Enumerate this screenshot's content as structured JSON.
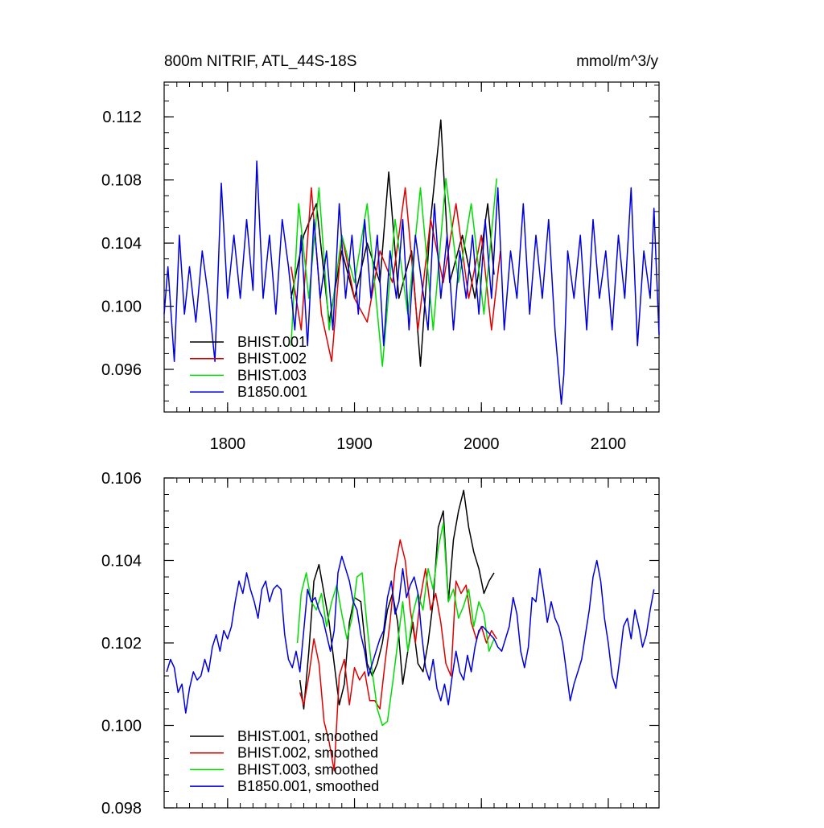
{
  "colors": {
    "black": "#000000",
    "red": "#e00000",
    "green": "#00dd00",
    "blue": "#0000dd"
  },
  "chart_data": [
    {
      "type": "line",
      "title": "800m NITRIF, ATL_44S-18S",
      "units": "mmol/m^3/y",
      "xlim": [
        1750,
        2140
      ],
      "ylim": [
        0.0933,
        0.1142
      ],
      "xticks": [
        1800,
        1900,
        2000,
        2100
      ],
      "xtick_labels": [
        "1800",
        "1900",
        "2000",
        "2100"
      ],
      "yticks": [
        0.096,
        0.1,
        0.104,
        0.108,
        0.112
      ],
      "ytick_labels": [
        "0.096",
        "0.100",
        "0.104",
        "0.108",
        "0.112"
      ],
      "legend_position": "bottom-left",
      "series": [
        {
          "name": "BHIST.001",
          "color": "black",
          "x": [
            1850,
            1860,
            1870,
            1880,
            1890,
            1900,
            1910,
            1920,
            1927,
            1935,
            1945,
            1952,
            1960,
            1968,
            1975,
            1985,
            1995,
            2005,
            2010
          ],
          "y": [
            0.1005,
            0.1045,
            0.1065,
            0.099,
            0.1035,
            0.1005,
            0.104,
            0.1015,
            0.1085,
            0.1005,
            0.1035,
            0.0962,
            0.1055,
            0.1118,
            0.1015,
            0.1045,
            0.1005,
            0.1065,
            0.102
          ]
        },
        {
          "name": "BHIST.002",
          "color": "red",
          "x": [
            1850,
            1858,
            1866,
            1874,
            1882,
            1890,
            1900,
            1910,
            1920,
            1930,
            1940,
            1950,
            1960,
            1970,
            1980,
            1990,
            2000,
            2008,
            2015
          ],
          "y": [
            0.1025,
            0.0985,
            0.1075,
            0.0995,
            0.0965,
            0.1045,
            0.1005,
            0.099,
            0.1035,
            0.1015,
            0.1075,
            0.0985,
            0.1055,
            0.1015,
            0.1065,
            0.1005,
            0.1045,
            0.0985,
            0.1035
          ]
        },
        {
          "name": "BHIST.003",
          "color": "green",
          "x": [
            1850,
            1856,
            1864,
            1872,
            1880,
            1890,
            1900,
            1910,
            1922,
            1932,
            1942,
            1952,
            1962,
            1972,
            1982,
            1992,
            2002,
            2012
          ],
          "y": [
            0.0975,
            0.1065,
            0.1005,
            0.1075,
            0.0985,
            0.1045,
            0.1015,
            0.1065,
            0.0962,
            0.1055,
            0.0995,
            0.1075,
            0.0985,
            0.1081,
            0.1015,
            0.1065,
            0.0995,
            0.1081
          ]
        },
        {
          "name": "B1850.001",
          "color": "blue",
          "x": [
            1750,
            1753,
            1758,
            1762,
            1766,
            1770,
            1775,
            1780,
            1785,
            1790,
            1795,
            1800,
            1805,
            1810,
            1815,
            1820,
            1823,
            1828,
            1833,
            1838,
            1843,
            1848,
            1853,
            1858,
            1863,
            1868,
            1873,
            1878,
            1883,
            1888,
            1893,
            1898,
            1903,
            1908,
            1913,
            1918,
            1923,
            1928,
            1933,
            1938,
            1943,
            1948,
            1953,
            1958,
            1963,
            1968,
            1973,
            1978,
            1983,
            1988,
            1993,
            1998,
            2003,
            2008,
            2013,
            2018,
            2023,
            2028,
            2033,
            2038,
            2043,
            2048,
            2053,
            2058,
            2063,
            2065,
            2068,
            2073,
            2078,
            2083,
            2088,
            2093,
            2098,
            2103,
            2108,
            2113,
            2118,
            2123,
            2128,
            2133,
            2136,
            2140
          ],
          "y": [
            0.0995,
            0.1025,
            0.0965,
            0.1045,
            0.0995,
            0.1025,
            0.099,
            0.1035,
            0.1005,
            0.0965,
            0.1078,
            0.1005,
            0.1045,
            0.1005,
            0.1055,
            0.101,
            0.1092,
            0.1005,
            0.1045,
            0.0995,
            0.1055,
            0.1025,
            0.0985,
            0.1045,
            0.0975,
            0.1055,
            0.1005,
            0.1035,
            0.0985,
            0.1065,
            0.1005,
            0.1045,
            0.0995,
            0.1055,
            0.1005,
            0.1045,
            0.0975,
            0.1035,
            0.1005,
            0.1055,
            0.0985,
            0.1045,
            0.1015,
            0.0985,
            0.1065,
            0.1005,
            0.1045,
            0.0985,
            0.1035,
            0.1005,
            0.1045,
            0.0995,
            0.1055,
            0.1005,
            0.1075,
            0.0985,
            0.1035,
            0.1005,
            0.1065,
            0.0995,
            0.1045,
            0.1005,
            0.1055,
            0.0985,
            0.0938,
            0.0957,
            0.1035,
            0.1005,
            0.1045,
            0.0985,
            0.1055,
            0.1005,
            0.1035,
            0.0985,
            0.1045,
            0.1005,
            0.1075,
            0.0975,
            0.1035,
            0.1005,
            0.1062,
            0.0982
          ]
        }
      ]
    },
    {
      "type": "line",
      "xlim": [
        1750,
        2140
      ],
      "ylim": [
        0.098,
        0.106
      ],
      "xticks": [
        1800,
        1900,
        2000,
        2100
      ],
      "yticks": [
        0.098,
        0.1,
        0.102,
        0.104,
        0.106
      ],
      "ytick_labels": [
        "0.098",
        "0.100",
        "0.102",
        "0.104",
        "0.106"
      ],
      "legend_position": "bottom-left",
      "series": [
        {
          "name": "BHIST.001, smoothed",
          "color": "black",
          "x": [
            1857,
            1860,
            1864,
            1868,
            1872,
            1876,
            1880,
            1884,
            1888,
            1892,
            1896,
            1900,
            1905,
            1910,
            1914,
            1918,
            1922,
            1926,
            1930,
            1934,
            1938,
            1942,
            1946,
            1950,
            1954,
            1958,
            1962,
            1966,
            1970,
            1974,
            1978,
            1982,
            1986,
            1990,
            1994,
            1998,
            2002,
            2006,
            2010
          ],
          "y": [
            0.1011,
            0.1004,
            0.1018,
            0.1035,
            0.1039,
            0.1032,
            0.1025,
            0.1015,
            0.1005,
            0.101,
            0.1025,
            0.1031,
            0.103,
            0.1015,
            0.1012,
            0.1015,
            0.102,
            0.1028,
            0.1032,
            0.1025,
            0.101,
            0.1018,
            0.1025,
            0.1015,
            0.1013,
            0.102,
            0.103,
            0.1048,
            0.1052,
            0.103,
            0.1045,
            0.1052,
            0.1057,
            0.1048,
            0.1042,
            0.1038,
            0.1032,
            0.1035,
            0.1037
          ]
        },
        {
          "name": "BHIST.002, smoothed",
          "color": "red",
          "x": [
            1857,
            1860,
            1864,
            1868,
            1872,
            1876,
            1880,
            1884,
            1888,
            1892,
            1896,
            1900,
            1904,
            1908,
            1912,
            1916,
            1920,
            1924,
            1928,
            1932,
            1936,
            1940,
            1944,
            1948,
            1952,
            1956,
            1960,
            1964,
            1968,
            1972,
            1976,
            1980,
            1984,
            1988,
            1992,
            1996,
            2000,
            2004,
            2008,
            2012
          ],
          "y": [
            0.1008,
            0.1005,
            0.1012,
            0.1021,
            0.1015,
            0.1001,
            0.0996,
            0.0989,
            0.1012,
            0.1016,
            0.1005,
            0.1014,
            0.1011,
            0.1013,
            0.1006,
            0.1006,
            0.1004,
            0.1015,
            0.1025,
            0.1038,
            0.1045,
            0.104,
            0.1028,
            0.102,
            0.1031,
            0.1038,
            0.1028,
            0.1032,
            0.1025,
            0.1015,
            0.1012,
            0.1035,
            0.1032,
            0.1034,
            0.1025,
            0.1021,
            0.1024,
            0.102,
            0.1023,
            0.1021
          ]
        },
        {
          "name": "BHIST.003, smoothed",
          "color": "green",
          "x": [
            1855,
            1858,
            1862,
            1866,
            1870,
            1874,
            1878,
            1882,
            1886,
            1890,
            1894,
            1898,
            1902,
            1906,
            1910,
            1914,
            1918,
            1922,
            1926,
            1930,
            1934,
            1938,
            1942,
            1946,
            1950,
            1954,
            1958,
            1962,
            1966,
            1970,
            1974,
            1978,
            1982,
            1986,
            1990,
            1994,
            1998,
            2002,
            2006,
            2010
          ],
          "y": [
            0.102,
            0.1032,
            0.1037,
            0.103,
            0.1028,
            0.1032,
            0.1024,
            0.103,
            0.1034,
            0.1027,
            0.1021,
            0.1026,
            0.1036,
            0.1037,
            0.1024,
            0.1013,
            0.1004,
            0.1,
            0.1001,
            0.101,
            0.102,
            0.103,
            0.1018,
            0.1027,
            0.1032,
            0.1028,
            0.1038,
            0.1033,
            0.1043,
            0.1049,
            0.103,
            0.1033,
            0.1026,
            0.1029,
            0.1033,
            0.1024,
            0.103,
            0.1027,
            0.1018,
            0.1021
          ]
        },
        {
          "name": "B1850.001, smoothed",
          "color": "blue",
          "x": [
            1752,
            1755,
            1758,
            1761,
            1764,
            1767,
            1770,
            1773,
            1776,
            1779,
            1782,
            1785,
            1788,
            1791,
            1794,
            1797,
            1800,
            1803,
            1806,
            1809,
            1812,
            1815,
            1818,
            1821,
            1824,
            1827,
            1830,
            1833,
            1836,
            1839,
            1842,
            1845,
            1848,
            1851,
            1854,
            1857,
            1860,
            1863,
            1866,
            1869,
            1872,
            1875,
            1878,
            1881,
            1884,
            1887,
            1890,
            1893,
            1896,
            1899,
            1902,
            1905,
            1908,
            1911,
            1914,
            1917,
            1920,
            1923,
            1926,
            1929,
            1932,
            1935,
            1938,
            1941,
            1944,
            1947,
            1950,
            1953,
            1956,
            1959,
            1962,
            1965,
            1968,
            1971,
            1974,
            1977,
            1980,
            1983,
            1986,
            1989,
            1992,
            1995,
            1998,
            2001,
            2004,
            2007,
            2010,
            2013,
            2016,
            2019,
            2022,
            2025,
            2028,
            2031,
            2034,
            2037,
            2040,
            2043,
            2046,
            2049,
            2052,
            2055,
            2058,
            2061,
            2064,
            2067,
            2070,
            2073,
            2076,
            2079,
            2082,
            2085,
            2088,
            2091,
            2094,
            2097,
            2100,
            2103,
            2106,
            2109,
            2112,
            2115,
            2118,
            2121,
            2124,
            2127,
            2130,
            2133,
            2136
          ],
          "y": [
            0.1013,
            0.1016,
            0.1014,
            0.1008,
            0.101,
            0.1003,
            0.1009,
            0.1013,
            0.1011,
            0.1012,
            0.1016,
            0.1013,
            0.1019,
            0.1022,
            0.1018,
            0.1023,
            0.1021,
            0.1024,
            0.103,
            0.1035,
            0.1032,
            0.1037,
            0.1033,
            0.103,
            0.1026,
            0.1033,
            0.1035,
            0.103,
            0.1033,
            0.1034,
            0.1033,
            0.1022,
            0.1016,
            0.1014,
            0.1018,
            0.1013,
            0.1023,
            0.1033,
            0.103,
            0.1031,
            0.1028,
            0.1026,
            0.1022,
            0.1018,
            0.1023,
            0.1037,
            0.1041,
            0.1038,
            0.1035,
            0.103,
            0.1028,
            0.1022,
            0.1018,
            0.1012,
            0.1015,
            0.1018,
            0.1021,
            0.1023,
            0.1031,
            0.1035,
            0.1027,
            0.103,
            0.1038,
            0.1031,
            0.1034,
            0.1036,
            0.1032,
            0.1022,
            0.1014,
            0.1011,
            0.1016,
            0.1009,
            0.1006,
            0.101,
            0.1005,
            0.1012,
            0.1018,
            0.1013,
            0.1011,
            0.1017,
            0.1013,
            0.1019,
            0.1023,
            0.1024,
            0.1023,
            0.1022,
            0.1021,
            0.1019,
            0.1018,
            0.1021,
            0.1024,
            0.1031,
            0.1027,
            0.1018,
            0.1014,
            0.1019,
            0.1031,
            0.103,
            0.1038,
            0.1032,
            0.1025,
            0.103,
            0.1026,
            0.1024,
            0.102,
            0.1013,
            0.1006,
            0.101,
            0.1013,
            0.1016,
            0.1022,
            0.1028,
            0.1036,
            0.104,
            0.1035,
            0.1026,
            0.102,
            0.1012,
            0.1009,
            0.1016,
            0.1024,
            0.1026,
            0.1021,
            0.1028,
            0.1024,
            0.1019,
            0.1022,
            0.1028,
            0.1033
          ]
        }
      ]
    }
  ]
}
